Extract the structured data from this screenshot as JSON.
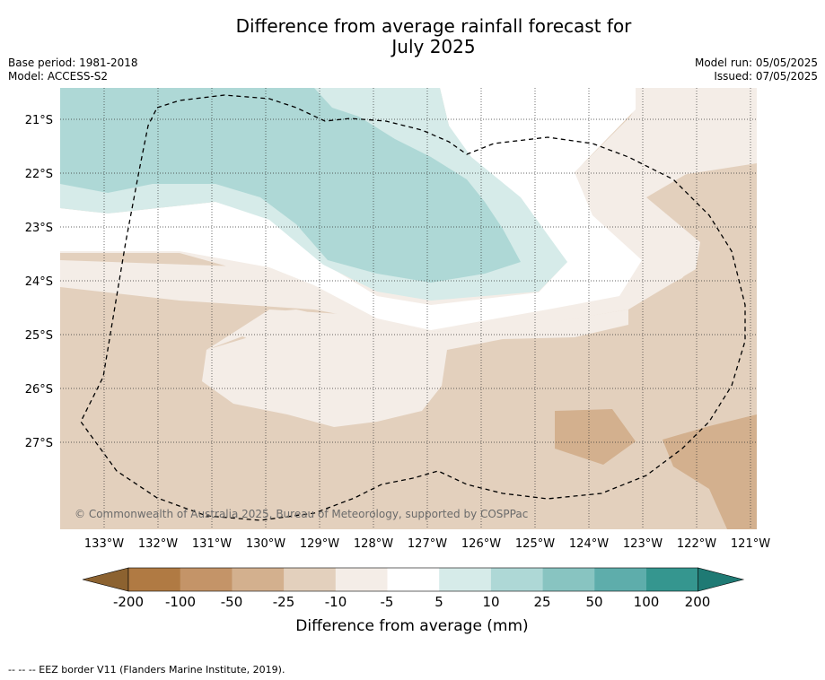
{
  "title_line1": "Difference from average rainfall forecast for",
  "title_line2": "July 2025",
  "base_period": "Base period: 1981-2018",
  "model": "Model: ACCESS-S2",
  "model_run": "Model run: 05/05/2025",
  "issued": "Issued: 07/05/2025",
  "copyright": "© Commonwealth of Australia 2025, Bureau of Meteorology, supported by COSPPac",
  "lat_labels": [
    "21°S",
    "22°S",
    "23°S",
    "24°S",
    "25°S",
    "26°S",
    "27°S"
  ],
  "lon_labels": [
    "133°W",
    "132°W",
    "131°W",
    "130°W",
    "129°W",
    "128°W",
    "127°W",
    "126°W",
    "125°W",
    "124°W",
    "123°W",
    "122°W",
    "121°W"
  ],
  "colorbar": {
    "labels": [
      "-200",
      "-100",
      "-50",
      "-25",
      "-10",
      "-5",
      "5",
      "10",
      "25",
      "50",
      "100",
      "200"
    ],
    "colors": [
      "#8c6230",
      "#b07a43",
      "#c49468",
      "#d3b08e",
      "#e3d0bd",
      "#f4ede7",
      "#ffffff",
      "#d6ebe9",
      "#aed8d6",
      "#88c4c1",
      "#5eadab",
      "#35968f",
      "#1f7a74"
    ],
    "label": "Difference from average (mm)"
  },
  "eez_caption": "--  --  -- EEZ border V11 (Flanders Marine Institute, 2019)."
}
